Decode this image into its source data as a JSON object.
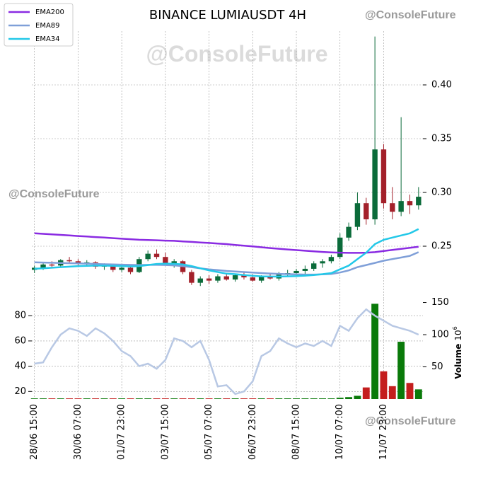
{
  "chart_data": {
    "type": "candlestick",
    "title": "BINANCE LUMIAUSDT 4H",
    "watermarks": [
      "@ConsoleFuture",
      "@ConsoleFuture",
      "@ConsoleFuture",
      "@ConsoleFuture"
    ],
    "open": [
      0.228,
      0.23,
      0.233,
      0.232,
      0.237,
      0.236,
      0.234,
      0.235,
      0.231,
      0.232,
      0.228,
      0.23,
      0.226,
      0.238,
      0.243,
      0.24,
      0.234,
      0.236,
      0.226,
      0.216,
      0.22,
      0.218,
      0.222,
      0.219,
      0.223,
      0.221,
      0.218,
      0.222,
      0.22,
      0.224,
      0.225,
      0.227,
      0.229,
      0.234,
      0.236,
      0.24,
      0.258,
      0.268,
      0.29,
      0.275,
      0.34,
      0.29,
      0.282,
      0.292,
      0.288
    ],
    "high": [
      0.232,
      0.234,
      0.236,
      0.238,
      0.24,
      0.238,
      0.237,
      0.236,
      0.234,
      0.233,
      0.232,
      0.233,
      0.24,
      0.246,
      0.247,
      0.244,
      0.238,
      0.237,
      0.228,
      0.222,
      0.223,
      0.224,
      0.225,
      0.224,
      0.226,
      0.224,
      0.223,
      0.225,
      0.226,
      0.228,
      0.229,
      0.232,
      0.236,
      0.238,
      0.242,
      0.262,
      0.272,
      0.3,
      0.295,
      0.445,
      0.345,
      0.305,
      0.37,
      0.298,
      0.305
    ],
    "low": [
      0.225,
      0.228,
      0.23,
      0.231,
      0.234,
      0.232,
      0.231,
      0.229,
      0.228,
      0.226,
      0.226,
      0.224,
      0.225,
      0.236,
      0.238,
      0.232,
      0.23,
      0.224,
      0.214,
      0.213,
      0.215,
      0.216,
      0.218,
      0.217,
      0.219,
      0.217,
      0.216,
      0.219,
      0.218,
      0.222,
      0.222,
      0.224,
      0.227,
      0.23,
      0.234,
      0.238,
      0.255,
      0.265,
      0.27,
      0.27,
      0.285,
      0.275,
      0.278,
      0.28,
      0.284
    ],
    "close": [
      0.23,
      0.233,
      0.232,
      0.237,
      0.236,
      0.234,
      0.235,
      0.231,
      0.232,
      0.228,
      0.23,
      0.226,
      0.238,
      0.243,
      0.24,
      0.234,
      0.236,
      0.226,
      0.216,
      0.22,
      0.218,
      0.222,
      0.219,
      0.223,
      0.221,
      0.218,
      0.222,
      0.22,
      0.224,
      0.225,
      0.227,
      0.229,
      0.234,
      0.236,
      0.24,
      0.258,
      0.268,
      0.29,
      0.275,
      0.34,
      0.29,
      0.282,
      0.292,
      0.288,
      0.296
    ],
    "up_color": "#0b6b3a",
    "down_color": "#a3202a",
    "series": [
      {
        "name": "EMA200",
        "color": "#8a2be2",
        "values": [
          0.262,
          0.2615,
          0.261,
          0.2605,
          0.26,
          0.2595,
          0.259,
          0.2585,
          0.258,
          0.2575,
          0.257,
          0.2565,
          0.256,
          0.2558,
          0.2555,
          0.2552,
          0.255,
          0.2545,
          0.254,
          0.2535,
          0.253,
          0.2525,
          0.252,
          0.2512,
          0.2505,
          0.2498,
          0.249,
          0.2483,
          0.2476,
          0.247,
          0.2464,
          0.2458,
          0.2452,
          0.2447,
          0.2443,
          0.244,
          0.2438,
          0.2438,
          0.244,
          0.2445,
          0.2455,
          0.2465,
          0.2475,
          0.2485,
          0.2495
        ]
      },
      {
        "name": "EMA89",
        "color": "#7f9fd8",
        "values": [
          0.235,
          0.2348,
          0.2346,
          0.2344,
          0.2342,
          0.234,
          0.2338,
          0.2335,
          0.2332,
          0.233,
          0.2328,
          0.2326,
          0.2325,
          0.2326,
          0.2326,
          0.2325,
          0.2322,
          0.2315,
          0.2305,
          0.2295,
          0.2285,
          0.2278,
          0.227,
          0.2265,
          0.226,
          0.2255,
          0.225,
          0.2246,
          0.2243,
          0.224,
          0.2238,
          0.2236,
          0.2236,
          0.2238,
          0.2242,
          0.2255,
          0.2275,
          0.2305,
          0.2325,
          0.2345,
          0.2365,
          0.238,
          0.2395,
          0.241,
          0.2445
        ]
      },
      {
        "name": "EMA34",
        "color": "#22c8e8",
        "values": [
          0.229,
          0.2295,
          0.23,
          0.2305,
          0.231,
          0.2315,
          0.2318,
          0.232,
          0.232,
          0.2318,
          0.2316,
          0.2312,
          0.2315,
          0.2325,
          0.2335,
          0.2338,
          0.2336,
          0.233,
          0.2315,
          0.2295,
          0.2275,
          0.226,
          0.2245,
          0.224,
          0.2232,
          0.2225,
          0.222,
          0.2218,
          0.2218,
          0.222,
          0.2222,
          0.2226,
          0.2232,
          0.224,
          0.225,
          0.2285,
          0.232,
          0.238,
          0.244,
          0.252,
          0.256,
          0.258,
          0.26,
          0.262,
          0.266
        ]
      }
    ],
    "xlim": [
      -0.3,
      44.5
    ],
    "xticks": [
      {
        "value": 0,
        "label": "28/06 15:00"
      },
      {
        "value": 5,
        "label": "30/06 07:00"
      },
      {
        "value": 10,
        "label": "01/07 23:00"
      },
      {
        "value": 15,
        "label": "03/07 15:00"
      },
      {
        "value": 20,
        "label": "05/07 07:00"
      },
      {
        "value": 25,
        "label": "06/07 23:00"
      },
      {
        "value": 30,
        "label": "08/07 15:00"
      },
      {
        "value": 35,
        "label": "10/07 07:00"
      },
      {
        "value": 40,
        "label": "11/07 23:00"
      }
    ],
    "ylim": [
      0.2,
      0.45
    ],
    "yticks": [
      0.25,
      {
        "value": 0.3,
        "label": "0.30"
      },
      0.35,
      {
        "value": 0.4,
        "label": "0.40"
      }
    ],
    "rsi": {
      "color": "#b8c8e4",
      "values": [
        42,
        43,
        55,
        65,
        70,
        68,
        64,
        70,
        66,
        60,
        52,
        48,
        40,
        42,
        38,
        45,
        62,
        60,
        55,
        60,
        45,
        24,
        25,
        18,
        20,
        28,
        48,
        52,
        62,
        58,
        55,
        58,
        56,
        60,
        56,
        72,
        68,
        78,
        85,
        80,
        76,
        72,
        70,
        68,
        65
      ],
      "ylim": [
        14,
        93
      ],
      "yticks": [
        20,
        40,
        60,
        80
      ]
    },
    "volume": {
      "values": [
        1,
        1,
        1,
        1,
        1,
        1,
        1,
        1,
        1,
        1,
        1,
        1,
        1,
        1,
        1,
        1,
        1,
        1,
        1,
        1,
        1,
        1,
        1,
        1,
        1,
        1,
        1,
        1,
        1,
        1,
        1,
        1,
        1,
        1,
        1,
        2,
        3,
        5,
        18,
        148,
        43,
        20,
        89,
        25,
        15
      ],
      "y2lim": [
        0,
        155
      ],
      "y2ticks": [
        50,
        100,
        150
      ],
      "y2label": "Volume",
      "y2label_base": "10",
      "y2label_exp": "6",
      "up_color": "#0a7a0a",
      "down_color": "#c41e1e"
    },
    "grid": true,
    "legend": "upper-left"
  }
}
